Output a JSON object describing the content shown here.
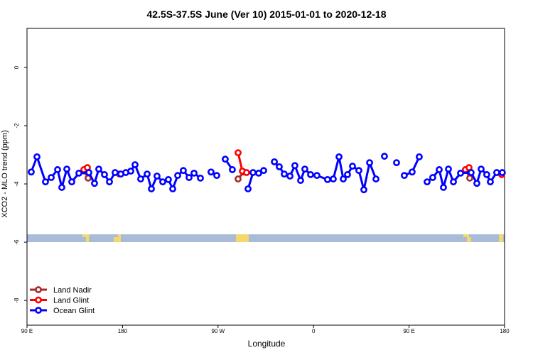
{
  "chart_data": {
    "type": "line",
    "title": "42.5S-37.5S June (Ver 10)   2015-01-01 to 2020-12-18",
    "xlabel": "Longitude",
    "ylabel": "XCO2 - MLO trend (ppm)",
    "xlim": [
      90,
      540
    ],
    "xticks": [
      {
        "value": 90,
        "label": "90 E"
      },
      {
        "value": 180,
        "label": "180"
      },
      {
        "value": 270,
        "label": "90 W"
      },
      {
        "value": 360,
        "label": "0"
      },
      {
        "value": 450,
        "label": "90 E"
      },
      {
        "value": 540,
        "label": "180"
      }
    ],
    "ylim": [
      -8.85,
      1.34
    ],
    "yticks": [
      0,
      -2,
      -4,
      -6,
      -8
    ],
    "legend": "bottom-left",
    "series": [
      {
        "name": "Land Nadir",
        "color": "#a52a2a",
        "x": [
          144.2,
          147.6,
          null,
          288.9,
          294.2,
          null,
          503.8,
          507.2
        ],
        "values": [
          -3.56,
          -3.8,
          null,
          -3.83,
          -3.59,
          null,
          -3.54,
          -3.8
        ]
      },
      {
        "name": "Land Glint",
        "color": "#ff0000",
        "x": [
          143.6,
          146.9,
          null,
          177.1,
          null,
          288.9,
          292.9,
          296.9,
          null,
          503.1,
          506.5,
          null,
          537.3
        ],
        "values": [
          -3.51,
          -3.44,
          null,
          -3.66,
          null,
          -2.93,
          -3.56,
          -3.61,
          null,
          -3.51,
          -3.44,
          null,
          -3.68
        ]
      },
      {
        "name": "Ocean Glint",
        "color": "#0000ff",
        "x": [
          94.0,
          99.4,
          107.4,
          112.8,
          118.8,
          122.8,
          127.5,
          132.2,
          138.9,
          148.3,
          153.6,
          157.6,
          163.0,
          167.7,
          173.0,
          178.4,
          183.1,
          187.8,
          191.8,
          197.1,
          203.2,
          207.2,
          212.5,
          217.9,
          223.2,
          227.3,
          232.0,
          237.3,
          242.7,
          247.4,
          253.4,
          null,
          263.4,
          268.8,
          null,
          276.8,
          283.5,
          null,
          298.3,
          303.0,
          308.3,
          313.0,
          null,
          323.1,
          327.7,
          332.4,
          337.8,
          342.4,
          347.8,
          351.8,
          357.2,
          363.2,
          373.2,
          378.6,
          384.0,
          388.0,
          392.0,
          396.7,
          402.7,
          407.4,
          412.8,
          418.8,
          null,
          426.8,
          null,
          438.2,
          null,
          445.5,
          452.9,
          459.6,
          null,
          467.0,
          472.3,
          478.4,
          482.4,
          487.1,
          491.8,
          498.5,
          508.5,
          513.9,
          517.9,
          523.2,
          526.6,
          532.6,
          537.9
        ],
        "values": [
          -3.59,
          -3.07,
          -3.93,
          -3.78,
          -3.51,
          -4.12,
          -3.49,
          -3.93,
          -3.63,
          -3.61,
          -3.98,
          -3.49,
          -3.68,
          -3.93,
          -3.61,
          -3.66,
          -3.61,
          -3.56,
          -3.34,
          -3.83,
          -3.66,
          -4.17,
          -3.73,
          -3.93,
          -3.85,
          -4.17,
          -3.71,
          -3.54,
          -3.78,
          -3.63,
          -3.8,
          null,
          -3.59,
          -3.71,
          null,
          -3.15,
          -3.51,
          null,
          -4.17,
          -3.61,
          -3.63,
          -3.54,
          null,
          -3.24,
          -3.41,
          -3.66,
          -3.73,
          -3.37,
          -3.88,
          -3.49,
          -3.68,
          -3.71,
          -3.85,
          -3.83,
          -3.07,
          -3.83,
          -3.68,
          -3.39,
          -3.54,
          -4.2,
          -3.27,
          -3.83,
          null,
          -3.05,
          null,
          -3.27,
          null,
          -3.71,
          -3.59,
          -3.07,
          null,
          -3.93,
          -3.78,
          -3.51,
          -4.12,
          -3.49,
          -3.93,
          -3.63,
          -3.61,
          -3.98,
          -3.49,
          -3.68,
          -3.93,
          -3.61,
          -3.61
        ]
      }
    ]
  }
}
